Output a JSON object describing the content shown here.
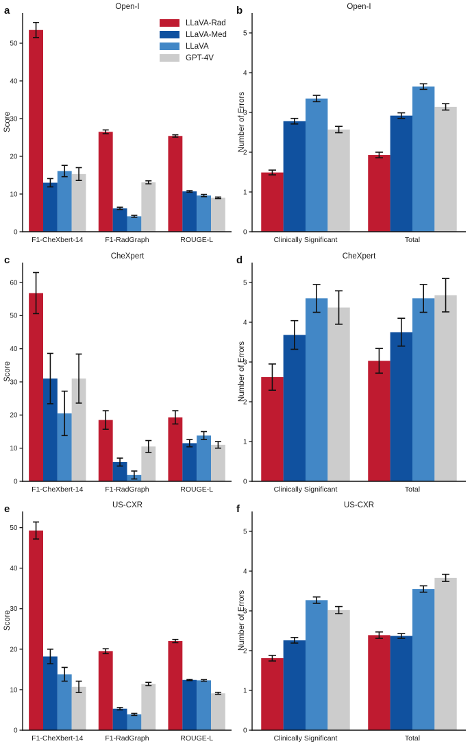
{
  "figure": {
    "background": "#ffffff",
    "axis_color": "#111111",
    "errorbar_color": "#111111",
    "palette": {
      "LLaVA-Rad": "#bf1b30",
      "LLaVA-Med": "#10519f",
      "LLaVA": "#4287c6",
      "GPT-4V": "#cccccc"
    },
    "legend": {
      "position": "upper-right-of-panel-a",
      "items": [
        {
          "label": "LLaVA-Rad",
          "color": "#bf1b30"
        },
        {
          "label": "LLaVA-Med",
          "color": "#10519f"
        },
        {
          "label": "LLaVA",
          "color": "#4287c6"
        },
        {
          "label": "GPT-4V",
          "color": "#cccccc"
        }
      ]
    }
  },
  "chart_data": [
    {
      "id": "a",
      "letter": "a",
      "type": "bar",
      "panel_kind": "score",
      "title": "Open-I",
      "xlabel": "",
      "ylabel": "Score",
      "categories": [
        "F1-CheXbert-14",
        "F1-RadGraph",
        "ROUGE-L"
      ],
      "series": [
        {
          "name": "LLaVA-Rad",
          "values": [
            53.5,
            26.5,
            25.4
          ],
          "errors": [
            2.0,
            0.5,
            0.3
          ]
        },
        {
          "name": "LLaVA-Med",
          "values": [
            13.0,
            6.2,
            10.7
          ],
          "errors": [
            1.1,
            0.3,
            0.2
          ]
        },
        {
          "name": "LLaVA",
          "values": [
            16.1,
            4.1,
            9.6
          ],
          "errors": [
            1.5,
            0.25,
            0.3
          ]
        },
        {
          "name": "GPT-4V",
          "values": [
            15.3,
            13.1,
            9.0
          ],
          "errors": [
            1.7,
            0.4,
            0.2
          ]
        }
      ],
      "ylim": [
        0,
        58
      ],
      "yticks": [
        0,
        10,
        20,
        30,
        40,
        50
      ],
      "grid": false,
      "legend": true,
      "legend_position": "upper right",
      "error_bars": true
    },
    {
      "id": "b",
      "letter": "b",
      "type": "bar",
      "panel_kind": "errors",
      "title": "Open-I",
      "xlabel": "",
      "ylabel": "Number of Errors",
      "categories": [
        "Clinically Significant",
        "Total"
      ],
      "series": [
        {
          "name": "LLaVA-Rad",
          "values": [
            1.49,
            1.93
          ],
          "errors": [
            0.06,
            0.07
          ]
        },
        {
          "name": "LLaVA-Med",
          "values": [
            2.78,
            2.92
          ],
          "errors": [
            0.07,
            0.07
          ]
        },
        {
          "name": "LLaVA",
          "values": [
            3.35,
            3.65
          ],
          "errors": [
            0.08,
            0.07
          ]
        },
        {
          "name": "GPT-4V",
          "values": [
            2.57,
            3.14
          ],
          "errors": [
            0.08,
            0.08
          ]
        }
      ],
      "ylim": [
        0,
        5.5
      ],
      "yticks": [
        0,
        1,
        2,
        3,
        4,
        5
      ],
      "grid": false,
      "legend": false,
      "error_bars": true
    },
    {
      "id": "c",
      "letter": "c",
      "type": "bar",
      "panel_kind": "score",
      "title": "CheXpert",
      "xlabel": "",
      "ylabel": "Score",
      "categories": [
        "F1-CheXbert-14",
        "F1-RadGraph",
        "ROUGE-L"
      ],
      "series": [
        {
          "name": "LLaVA-Rad",
          "values": [
            56.8,
            18.5,
            19.3
          ],
          "errors": [
            6.2,
            2.8,
            2.0
          ]
        },
        {
          "name": "LLaVA-Med",
          "values": [
            31.0,
            5.8,
            11.5
          ],
          "errors": [
            7.6,
            1.2,
            1.1
          ]
        },
        {
          "name": "LLaVA",
          "values": [
            20.5,
            1.9,
            13.8
          ],
          "errors": [
            6.7,
            1.2,
            1.2
          ]
        },
        {
          "name": "GPT-4V",
          "values": [
            31.0,
            10.5,
            11.0
          ],
          "errors": [
            7.4,
            1.8,
            1.0
          ]
        }
      ],
      "ylim": [
        0,
        66
      ],
      "yticks": [
        0,
        10,
        20,
        30,
        40,
        50,
        60
      ],
      "grid": false,
      "legend": false,
      "error_bars": true
    },
    {
      "id": "d",
      "letter": "d",
      "type": "bar",
      "panel_kind": "errors",
      "title": "CheXpert",
      "xlabel": "",
      "ylabel": "Number of Errors",
      "categories": [
        "Clinically Significant",
        "Total"
      ],
      "series": [
        {
          "name": "LLaVA-Rad",
          "values": [
            2.62,
            3.03
          ],
          "errors": [
            0.33,
            0.31
          ]
        },
        {
          "name": "LLaVA-Med",
          "values": [
            3.68,
            3.75
          ],
          "errors": [
            0.36,
            0.35
          ]
        },
        {
          "name": "LLaVA",
          "values": [
            4.6,
            4.6
          ],
          "errors": [
            0.35,
            0.35
          ]
        },
        {
          "name": "GPT-4V",
          "values": [
            4.37,
            4.68
          ],
          "errors": [
            0.42,
            0.42
          ]
        }
      ],
      "ylim": [
        0,
        5.5
      ],
      "yticks": [
        0,
        1,
        2,
        3,
        4,
        5
      ],
      "grid": false,
      "legend": false,
      "error_bars": true
    },
    {
      "id": "e",
      "letter": "e",
      "type": "bar",
      "panel_kind": "score",
      "title": "US-CXR",
      "xlabel": "",
      "ylabel": "Score",
      "categories": [
        "F1-CheXbert-14",
        "F1-RadGraph",
        "ROUGE-L"
      ],
      "series": [
        {
          "name": "LLaVA-Rad",
          "values": [
            49.3,
            19.5,
            22.0
          ],
          "errors": [
            2.1,
            0.6,
            0.4
          ]
        },
        {
          "name": "LLaVA-Med",
          "values": [
            18.2,
            5.3,
            12.4
          ],
          "errors": [
            1.8,
            0.3,
            0.15
          ]
        },
        {
          "name": "LLaVA",
          "values": [
            13.8,
            3.9,
            12.3
          ],
          "errors": [
            1.7,
            0.25,
            0.2
          ]
        },
        {
          "name": "GPT-4V",
          "values": [
            10.7,
            11.4,
            9.1
          ],
          "errors": [
            1.4,
            0.4,
            0.25
          ]
        }
      ],
      "ylim": [
        0,
        54
      ],
      "yticks": [
        0,
        10,
        20,
        30,
        40,
        50
      ],
      "grid": false,
      "legend": false,
      "error_bars": true
    },
    {
      "id": "f",
      "letter": "f",
      "type": "bar",
      "panel_kind": "errors",
      "title": "US-CXR",
      "xlabel": "",
      "ylabel": "Number of Errors",
      "categories": [
        "Clinically Significant",
        "Total"
      ],
      "series": [
        {
          "name": "LLaVA-Rad",
          "values": [
            1.81,
            2.39
          ],
          "errors": [
            0.07,
            0.08
          ]
        },
        {
          "name": "LLaVA-Med",
          "values": [
            2.26,
            2.37
          ],
          "errors": [
            0.07,
            0.06
          ]
        },
        {
          "name": "LLaVA",
          "values": [
            3.27,
            3.55
          ],
          "errors": [
            0.08,
            0.08
          ]
        },
        {
          "name": "GPT-4V",
          "values": [
            3.02,
            3.83
          ],
          "errors": [
            0.09,
            0.09
          ]
        }
      ],
      "ylim": [
        0,
        5.5
      ],
      "yticks": [
        0,
        1,
        2,
        3,
        4,
        5
      ],
      "grid": false,
      "legend": false,
      "error_bars": true
    }
  ]
}
